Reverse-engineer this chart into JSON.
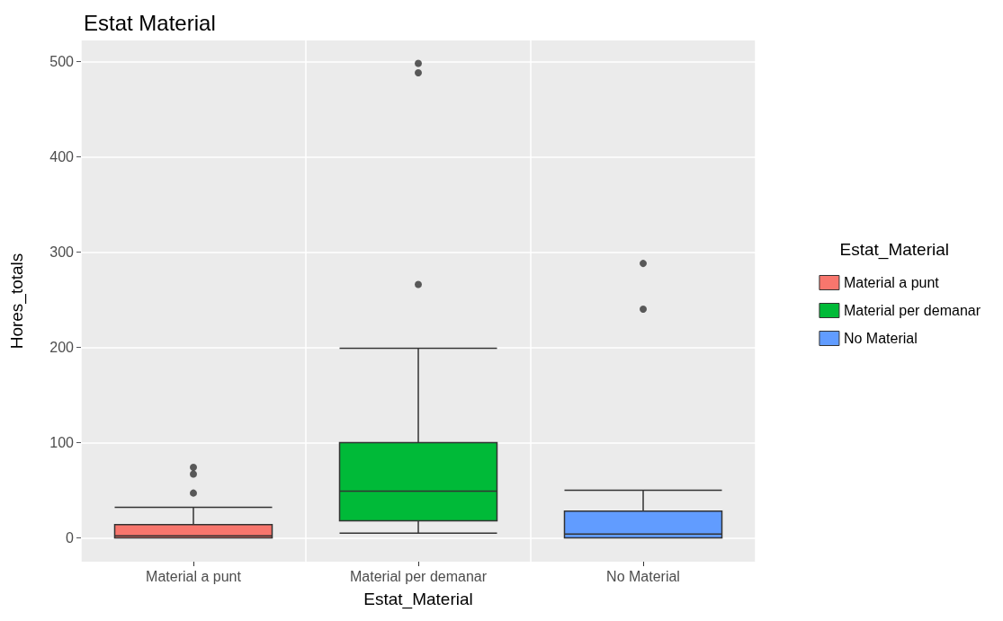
{
  "chart_data": {
    "type": "box",
    "title": "Estat Material",
    "xlabel": "Estat_Material",
    "ylabel": "Hores_totals",
    "legend_title": "Estat_Material",
    "categories": [
      "Material a punt",
      "Material per demanar",
      "No Material"
    ],
    "series": [
      {
        "name": "Material a punt",
        "color": "#f8766d",
        "boxes": [
          {
            "low": 0,
            "q1": 0,
            "median": 2,
            "q3": 14,
            "high": 32,
            "outliers": [
              47,
              67,
              74
            ]
          },
          null,
          null
        ]
      },
      {
        "name": "Material per demanar",
        "color": "#00ba38",
        "boxes": [
          null,
          {
            "low": 5,
            "q1": 18,
            "median": 49,
            "q3": 100,
            "high": 199,
            "outliers": [
              266,
              488,
              498
            ]
          },
          null
        ]
      },
      {
        "name": "No Material",
        "color": "#619cff",
        "boxes": [
          null,
          null,
          {
            "low": 0,
            "q1": 0,
            "median": 4,
            "q3": 28,
            "high": 50,
            "outliers": [
              240,
              288
            ]
          }
        ]
      }
    ],
    "ylim": [
      -25,
      522
    ],
    "yticks": [
      0,
      100,
      200,
      300,
      400,
      500
    ],
    "grid": true,
    "legend": "right"
  }
}
